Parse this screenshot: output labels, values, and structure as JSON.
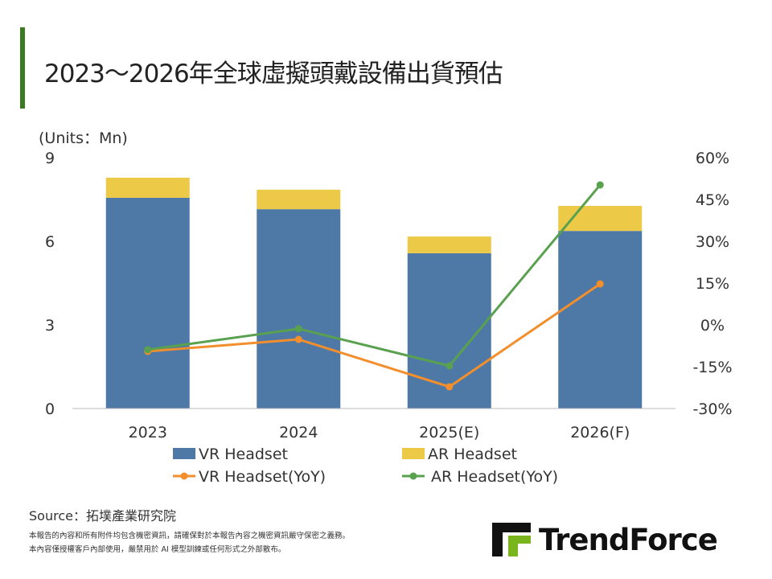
{
  "title": "2023～2026年全球虛擬頭戴設備出貨預估",
  "units": "(Units：Mn)",
  "chart_data": {
    "type": "bar",
    "categories": [
      "2023",
      "2024",
      "2025(E)",
      "2026(F)"
    ],
    "stacked": true,
    "y_left": {
      "range": [
        0,
        9
      ],
      "ticks": [
        "0",
        "3",
        "6",
        "9"
      ]
    },
    "y_right": {
      "range": [
        -30,
        60
      ],
      "ticks": [
        "-30%",
        "-15%",
        "0%",
        "15%",
        "30%",
        "45%",
        "60%"
      ]
    },
    "series": [
      {
        "name": "VR Headset",
        "type": "bar",
        "axis": "left",
        "color": "#4e79a7",
        "values": [
          7.56,
          7.15,
          5.57,
          6.37
        ]
      },
      {
        "name": "AR Headset",
        "type": "bar",
        "axis": "left",
        "color": "#edc948",
        "values": [
          0.72,
          0.7,
          0.6,
          0.9
        ]
      },
      {
        "name": "VR Headset(YoY)",
        "type": "line",
        "axis": "right",
        "color": "#f28e2b",
        "values": [
          -9.5,
          -5.2,
          -22.2,
          14.7
        ]
      },
      {
        "name": "AR Headset(YoY)",
        "type": "line",
        "axis": "right",
        "color": "#59a14f",
        "values": [
          -8.9,
          -1.4,
          -14.7,
          50.2
        ]
      }
    ],
    "grid": false,
    "legend": "bottom"
  },
  "watermark": "TrendForce",
  "source": "Source：拓墣產業研究院",
  "notes": [
    "本報告的內容和所有附件均包含機密資訊，請確保對於本報告內容之機密資訊嚴守保密之義務。",
    "本內容僅授權客戶內部使用，嚴禁用於 AI 模型訓練或任何形式之外部散布。"
  ],
  "logo": "TrendForce"
}
